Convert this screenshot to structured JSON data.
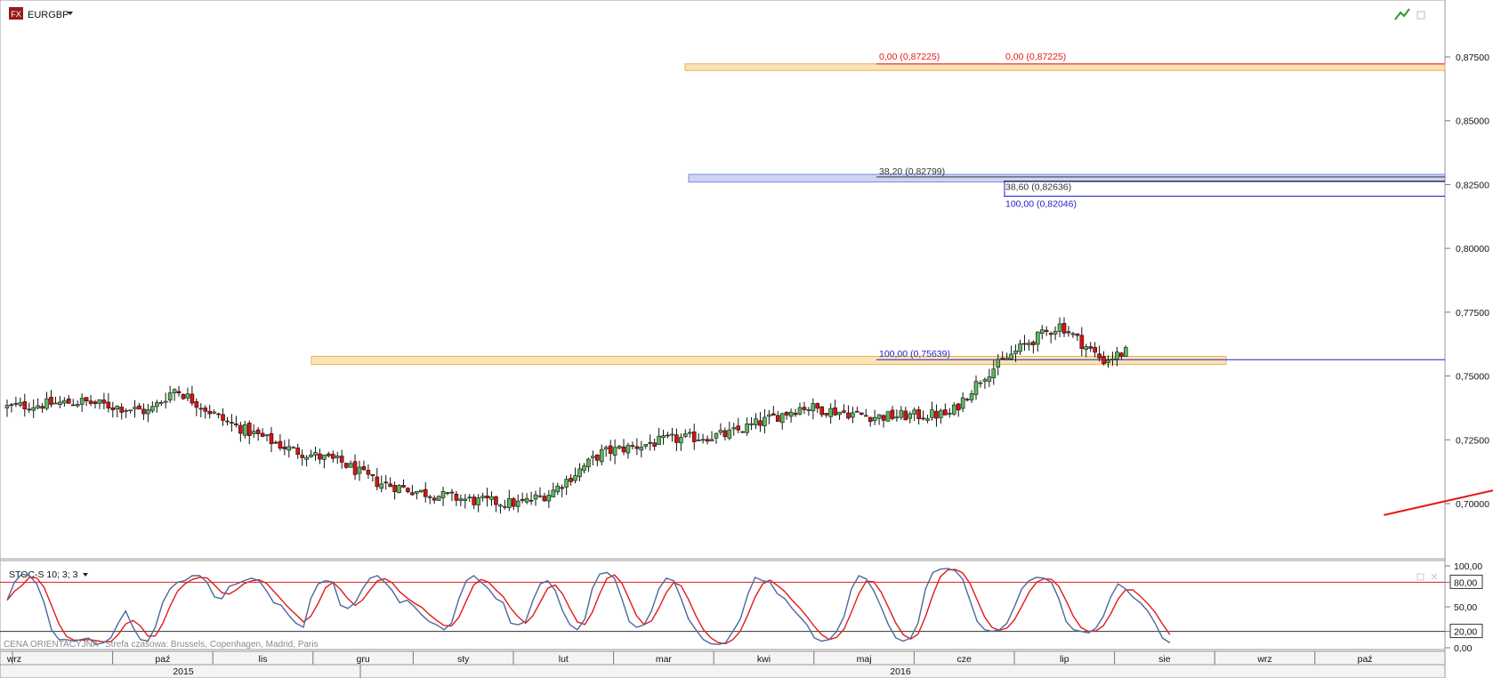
{
  "window": {
    "symbol": "EURGBP",
    "badge": "FX",
    "status_text": "CENA ORIENTACYJNA",
    "timezone_text": "Strefa czasowa: Brussels, Copenhagen, Madrid, Paris"
  },
  "indicator": {
    "label": "STOC-S 10; 3; 3"
  },
  "colors": {
    "bull": "#5cb85c",
    "bear": "#dd1111",
    "trend": "#e41a1a",
    "zone_orange": "#f7c86b",
    "zone_blue": "#6e7fd8",
    "stoch_k": "#4a6a9a",
    "stoch_d": "#e41a1a"
  },
  "chart_data": [
    {
      "type": "candlestick",
      "title": "EURGBP",
      "y_ticks": [
        "0,87500",
        "0,85000",
        "0,82500",
        "0,80000",
        "0,77500",
        "0,75000",
        "0,72500",
        "0,70000"
      ],
      "ylim": [
        0.6975,
        0.8775
      ],
      "x_start_date": "2014-09",
      "months": [
        "wrz",
        "paź",
        "lis",
        "gru",
        "sty",
        "lut",
        "mar",
        "kwi",
        "maj",
        "cze",
        "lip",
        "sie",
        "wrz",
        "paź"
      ],
      "years": [
        "2015",
        "2016"
      ],
      "annotations": [
        {
          "text": "0,00 (0,87225)",
          "price": 0.87225,
          "color": "#e41a1a"
        },
        {
          "text": "0,00 (0,87225)",
          "price": 0.87225,
          "color": "#e41a1a"
        },
        {
          "text": "38,20 (0,82799)",
          "price": 0.82799,
          "color": "#333333"
        },
        {
          "text": "38,60 (0,82636)",
          "price": 0.82636,
          "color": "#333333"
        },
        {
          "text": "100,00 (0,82046)",
          "price": 0.82046,
          "color": "#2222cc"
        },
        {
          "text": "100,00 (0,75639)",
          "price": 0.75639,
          "color": "#2222cc"
        }
      ],
      "zones": [
        {
          "price_low": 0.8697,
          "price_high": 0.8723,
          "color": "orange"
        },
        {
          "price_low": 0.826,
          "price_high": 0.829,
          "color": "blue"
        },
        {
          "price_low": 0.7545,
          "price_high": 0.7577,
          "color": "orange"
        }
      ],
      "trendline": {
        "from": {
          "date": "2015-10-22",
          "price": 0.6955
        },
        "to": {
          "date": "2016-07-30",
          "price": 0.7777
        }
      },
      "close_anchors": [
        {
          "date": "2014-09-01",
          "price": 0.738
        },
        {
          "date": "2014-09-22",
          "price": 0.74
        },
        {
          "date": "2014-10-12",
          "price": 0.736
        },
        {
          "date": "2014-10-20",
          "price": 0.745
        },
        {
          "date": "2014-11-05",
          "price": 0.732
        },
        {
          "date": "2014-11-25",
          "price": 0.721
        },
        {
          "date": "2014-12-10",
          "price": 0.716
        },
        {
          "date": "2014-12-20",
          "price": 0.7085
        },
        {
          "date": "2015-01-05",
          "price": 0.704
        },
        {
          "date": "2015-01-20",
          "price": 0.701
        },
        {
          "date": "2015-02-03",
          "price": 0.7
        },
        {
          "date": "2015-02-12",
          "price": 0.704
        },
        {
          "date": "2015-02-28",
          "price": 0.72
        },
        {
          "date": "2015-03-18",
          "price": 0.725
        },
        {
          "date": "2015-04-05",
          "price": 0.727
        },
        {
          "date": "2015-04-28",
          "price": 0.738
        },
        {
          "date": "2015-05-20",
          "price": 0.734
        },
        {
          "date": "2015-06-12",
          "price": 0.735
        },
        {
          "date": "2015-06-22",
          "price": 0.75
        },
        {
          "date": "2015-07-05",
          "price": 0.763
        },
        {
          "date": "2015-07-15",
          "price": 0.77
        },
        {
          "date": "2015-07-28",
          "price": 0.756
        },
        {
          "date": "2015-08-12",
          "price": 0.763
        },
        {
          "date": "2015-08-28",
          "price": 0.758
        },
        {
          "date": "2015-09-12",
          "price": 0.775
        },
        {
          "date": "2015-09-28",
          "price": 0.785
        },
        {
          "date": "2015-10-12",
          "price": 0.78
        },
        {
          "date": "2015-10-22",
          "price": 0.778
        },
        {
          "date": "2015-11-05",
          "price": 0.79
        },
        {
          "date": "2015-11-15",
          "price": 0.78
        },
        {
          "date": "2015-12-05",
          "price": 0.77
        },
        {
          "date": "2015-12-28",
          "price": 0.772
        },
        {
          "date": "2016-01-15",
          "price": 0.786
        },
        {
          "date": "2016-01-28",
          "price": 0.78
        },
        {
          "date": "2016-02-15",
          "price": 0.785
        },
        {
          "date": "2016-02-28",
          "price": 0.79
        },
        {
          "date": "2016-03-12",
          "price": 0.784
        },
        {
          "date": "2016-03-24",
          "price": 0.795
        },
        {
          "date": "2016-04-06",
          "price": 0.808
        },
        {
          "date": "2016-04-18",
          "price": 0.802
        },
        {
          "date": "2016-04-28",
          "price": 0.794
        },
        {
          "date": "2016-05-18",
          "price": 0.775
        },
        {
          "date": "2016-06-02",
          "price": 0.785
        },
        {
          "date": "2016-06-16",
          "price": 0.79
        },
        {
          "date": "2016-07-08",
          "price": 0.785
        },
        {
          "date": "2016-07-24",
          "price": 0.77
        },
        {
          "date": "2016-08-02",
          "price": 0.758
        },
        {
          "date": "2016-08-12",
          "price": 0.764
        },
        {
          "date": "2016-08-28",
          "price": 0.782
        },
        {
          "date": "2016-09-08",
          "price": 0.79
        },
        {
          "date": "2016-09-14",
          "price": 0.78
        },
        {
          "date": "2016-09-24",
          "price": 0.766
        },
        {
          "date": "2016-09-26",
          "price": 0.766
        },
        {
          "date": "2016-09-29",
          "price": 0.812
        },
        {
          "date": "2016-10-03",
          "price": 0.831
        },
        {
          "date": "2016-10-12",
          "price": 0.835
        },
        {
          "date": "2016-10-22",
          "price": 0.86
        },
        {
          "date": "2016-11-05",
          "price": 0.852
        },
        {
          "date": "2016-11-15",
          "price": 0.835
        },
        {
          "date": "2016-11-30",
          "price": 0.839
        },
        {
          "date": "2016-12-20",
          "price": 0.84
        },
        {
          "date": "2016-12-31",
          "price": 0.845
        },
        {
          "date": "2017-01-14",
          "price": 0.838
        },
        {
          "date": "2017-01-24",
          "price": 0.85
        },
        {
          "date": "2017-02-08",
          "price": 0.865
        },
        {
          "date": "2017-02-18",
          "price": 0.87
        },
        {
          "date": "2017-02-28",
          "price": 0.864
        },
        {
          "date": "2017-03-12",
          "price": 0.852
        }
      ]
    },
    {
      "type": "line",
      "title": "STOC-S 10; 3; 3",
      "y_ticks": [
        "100,00",
        "80,00",
        "50,00",
        "20,00",
        "0,00"
      ],
      "ylim": [
        0,
        100
      ],
      "levels": [
        80,
        20
      ],
      "series": [
        {
          "values": [
            58,
            80,
            90,
            88,
            78,
            55,
            22,
            10,
            10,
            8,
            10,
            12,
            4,
            6,
            12,
            30,
            45,
            25,
            10,
            8,
            25,
            55,
            72,
            80,
            82,
            88,
            88,
            80,
            62,
            60,
            75,
            78,
            82,
            85,
            82,
            70,
            55,
            52,
            40,
            30,
            25,
            60,
            78,
            82,
            80,
            52,
            48,
            55,
            72,
            85,
            88,
            80,
            70,
            55,
            58,
            50,
            40,
            32,
            28,
            22,
            30,
            60,
            82,
            88,
            80,
            72,
            60,
            55,
            30,
            28,
            32,
            58,
            78,
            82,
            70,
            45,
            28,
            22,
            35,
            72,
            90,
            92,
            85,
            60,
            32,
            25,
            28,
            45,
            72,
            85,
            82,
            60,
            35,
            22,
            10,
            5,
            4,
            6,
            20,
            35,
            65,
            86,
            82,
            80,
            66,
            60,
            48,
            38,
            28,
            12,
            8,
            10,
            20,
            38,
            72,
            88,
            84,
            70,
            50,
            28,
            12,
            8,
            12,
            30,
            72,
            92,
            96,
            97,
            94,
            84,
            58,
            32,
            22,
            20,
            22,
            30,
            50,
            72,
            82,
            86,
            85,
            80,
            60,
            32,
            22,
            20,
            18,
            24,
            38,
            62,
            78,
            72,
            62,
            55,
            45,
            30,
            12,
            6
          ]
        }
      ],
      "signal_lag": 3
    }
  ]
}
